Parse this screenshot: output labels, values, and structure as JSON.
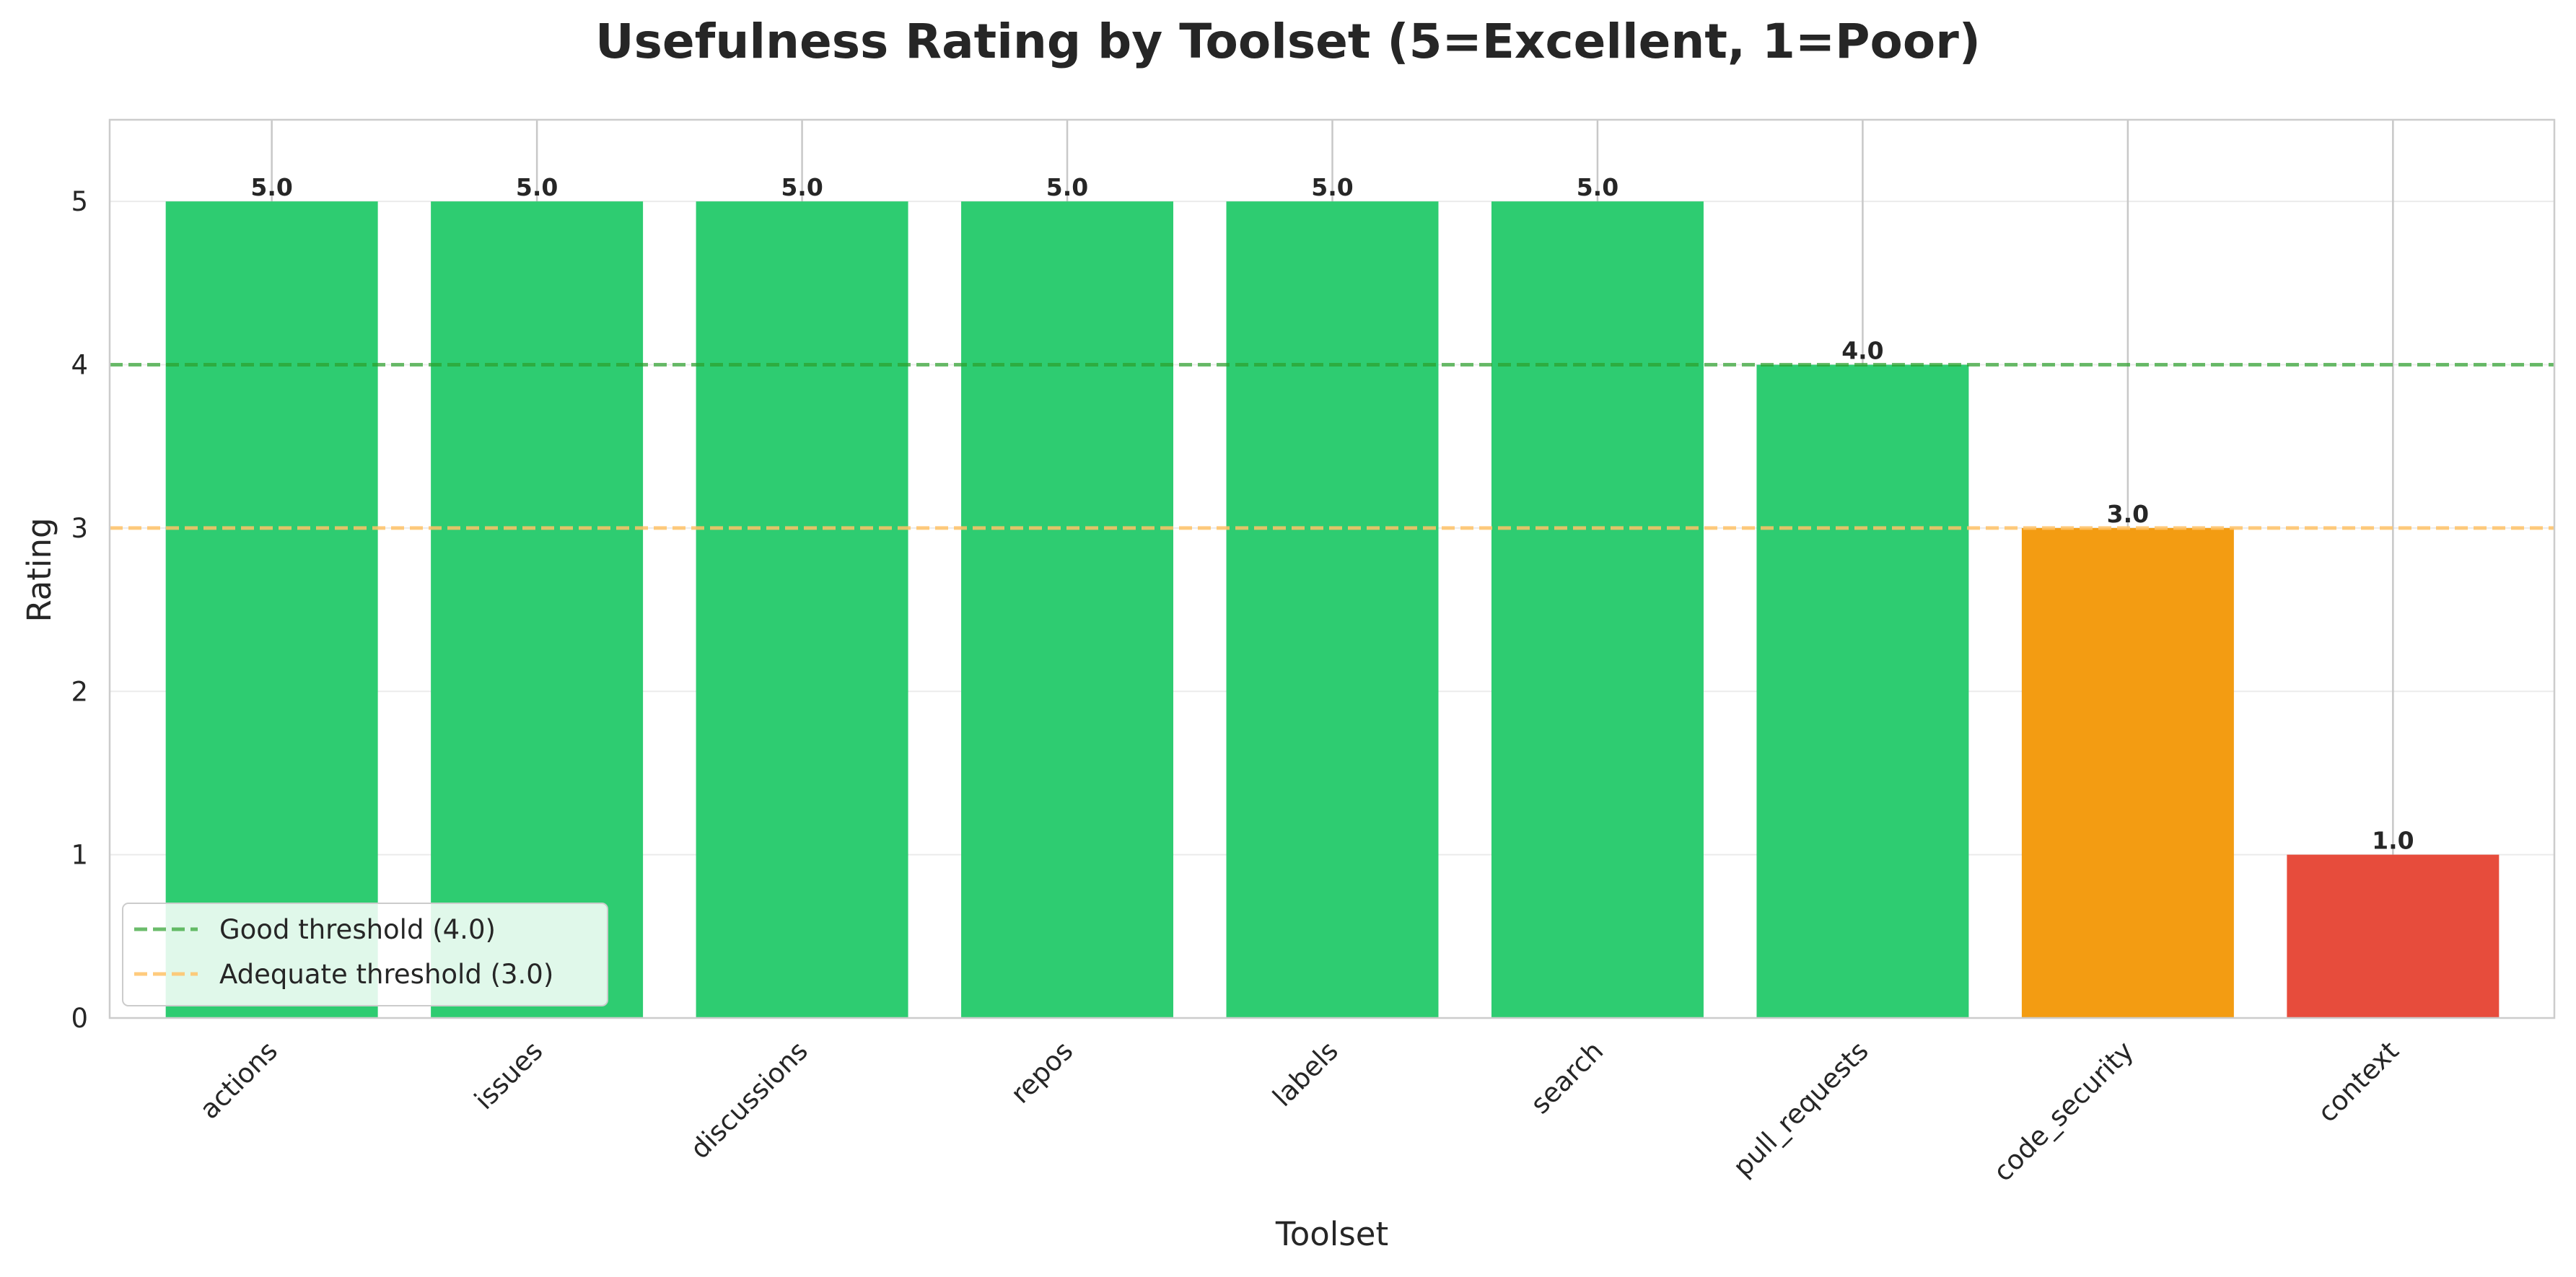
{
  "chart_data": {
    "type": "bar",
    "title": "Usefulness Rating by Toolset (5=Excellent, 1=Poor)",
    "xlabel": "Toolset",
    "ylabel": "Rating",
    "categories": [
      "actions",
      "issues",
      "discussions",
      "repos",
      "labels",
      "search",
      "pull_requests",
      "code_security",
      "context"
    ],
    "values": [
      5.0,
      5.0,
      5.0,
      5.0,
      5.0,
      5.0,
      4.0,
      3.0,
      1.0
    ],
    "value_labels": [
      "5.0",
      "5.0",
      "5.0",
      "5.0",
      "5.0",
      "5.0",
      "4.0",
      "3.0",
      "1.0"
    ],
    "bar_colors": [
      "#2ecc71",
      "#2ecc71",
      "#2ecc71",
      "#2ecc71",
      "#2ecc71",
      "#2ecc71",
      "#2ecc71",
      "#f39c12",
      "#e74c3c"
    ],
    "ylim": [
      0,
      5.5
    ],
    "yticks": [
      0,
      1,
      2,
      3,
      4,
      5
    ],
    "ytick_labels": [
      "0",
      "1",
      "2",
      "3",
      "4",
      "5"
    ],
    "grid": true,
    "reference_lines": [
      {
        "name": "Good threshold (4.0)",
        "value": 4.0,
        "color": "#2ca02c",
        "style": "dashed"
      },
      {
        "name": "Adequate threshold (3.0)",
        "value": 3.0,
        "color": "#ffc266",
        "style": "dashed"
      }
    ],
    "legend_position": "lower-left"
  }
}
